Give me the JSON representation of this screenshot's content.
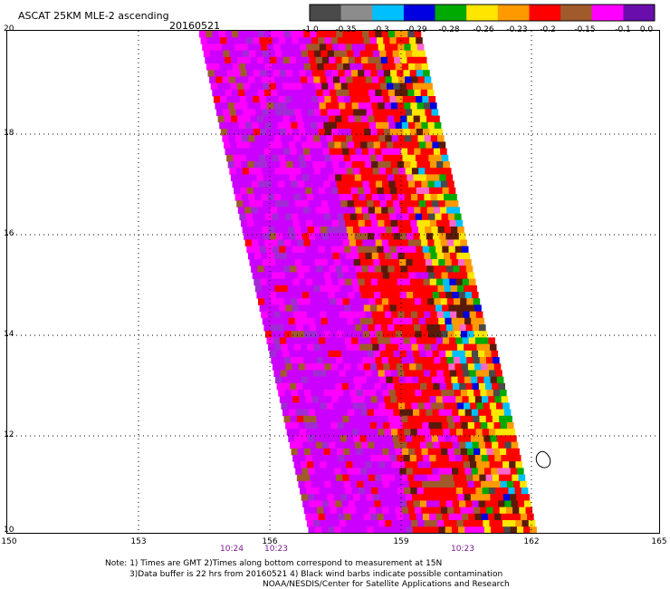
{
  "title": "ASCAT 25KM MLE-2 ascending",
  "date": "20160521",
  "colorbar": {
    "colors": [
      "#4a4a4a",
      "#8c8c8c",
      "#00bfff",
      "#0000e0",
      "#00aa00",
      "#ffe600",
      "#ff9900",
      "#ff0000",
      "#a05a2c",
      "#ff00ff",
      "#6a0dad"
    ],
    "labels": [
      "-1.0",
      "-0.35",
      "-0.3",
      "-0.29",
      "-0.28",
      "-0.26",
      "-0.23",
      "-0.2",
      "-0.15",
      "-0.1",
      "0.0"
    ]
  },
  "map": {
    "lat_labels": [
      "20",
      "18",
      "16",
      "14",
      "12",
      "10"
    ],
    "lat_values": [
      20,
      18,
      16,
      14,
      12,
      10
    ],
    "lon_labels": [
      "150",
      "153",
      "156",
      "159",
      "162",
      "165"
    ],
    "lon_values": [
      150,
      153,
      156,
      159,
      162,
      165
    ]
  },
  "times": [
    "10:24",
    "10:23",
    "10:23"
  ],
  "notes": [
    "Note: 1) Times are GMT 2)Times along bottom correspond to measurement at 15N",
    "3)Data buffer is 22 hrs from 20160521 4) Black wind barbs indicate possible contamination",
    "NOAA/NESDIS/Center for Satellite Applications and Research"
  ]
}
